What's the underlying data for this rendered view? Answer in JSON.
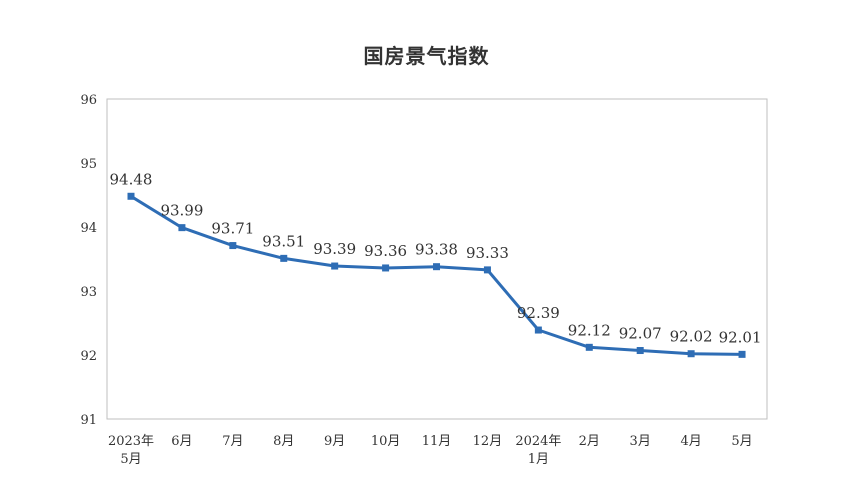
{
  "chart_data": {
    "type": "line",
    "title": "国房景气指数",
    "xlabel": "",
    "ylabel": "",
    "categories": [
      [
        "2023年",
        "5月"
      ],
      [
        "6月"
      ],
      [
        "7月"
      ],
      [
        "8月"
      ],
      [
        "9月"
      ],
      [
        "10月"
      ],
      [
        "11月"
      ],
      [
        "12月"
      ],
      [
        "2024年",
        "1月"
      ],
      [
        "2月"
      ],
      [
        "3月"
      ],
      [
        "4月"
      ],
      [
        "5月"
      ]
    ],
    "series": [
      {
        "values": [
          94.48,
          93.99,
          93.71,
          93.51,
          93.39,
          93.36,
          93.38,
          93.33,
          92.39,
          92.12,
          92.07,
          92.02,
          92.01
        ],
        "labels": [
          "94.48",
          "93.99",
          "93.71",
          "93.51",
          "93.39",
          "93.36",
          "93.38",
          "93.33",
          "92.39",
          "92.12",
          "92.07",
          "92.02",
          "92.01"
        ]
      }
    ],
    "yticks": [
      "96",
      "95",
      "94",
      "93",
      "92",
      "91"
    ],
    "ylim": [
      91,
      96
    ],
    "grid": false,
    "legend": "none",
    "colors": {
      "line": "#2e6db5",
      "axis": "#bfbfbf",
      "text": "#333333"
    }
  }
}
